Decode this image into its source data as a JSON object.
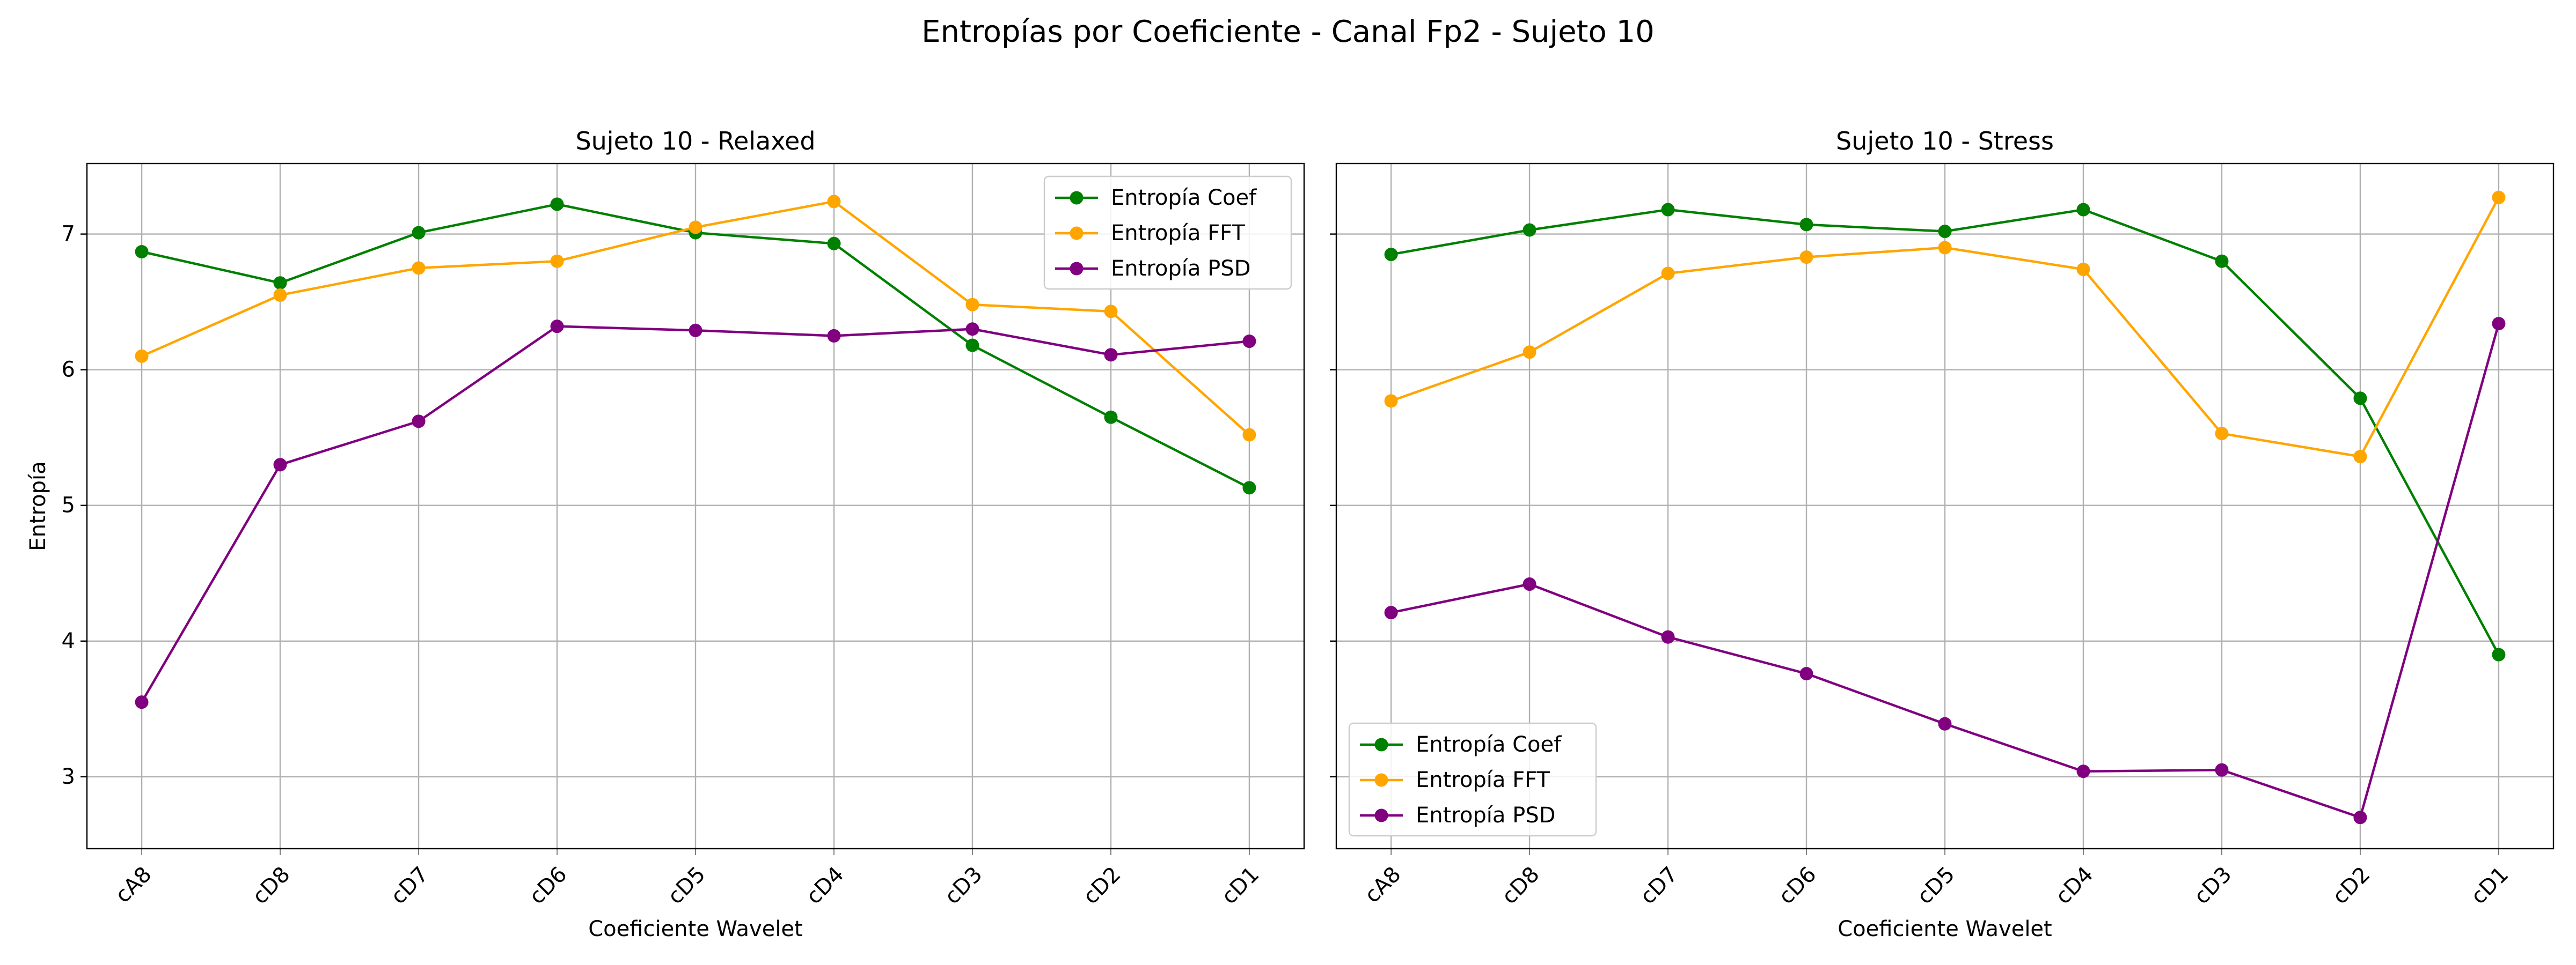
{
  "figure": {
    "suptitle": "Entropías por Coeficiente - Canal Fp2 - Sujeto 10"
  },
  "chart_data": [
    {
      "type": "line",
      "title": "Sujeto 10 - Relaxed",
      "xlabel": "Coeficiente Wavelet",
      "ylabel": "Entropía",
      "categories": [
        "cA8",
        "cD8",
        "cD7",
        "cD6",
        "cD5",
        "cD4",
        "cD3",
        "cD2",
        "cD1"
      ],
      "ylim": [
        2.47,
        7.52
      ],
      "yticks": [
        3,
        4,
        5,
        6,
        7
      ],
      "grid": true,
      "legend_position": "upper right",
      "series": [
        {
          "name": "Entropía Coef",
          "color": "#008000",
          "values": [
            6.87,
            6.64,
            7.01,
            7.22,
            7.01,
            6.93,
            6.18,
            5.65,
            5.13
          ]
        },
        {
          "name": "Entropía FFT",
          "color": "#FFA500",
          "values": [
            6.1,
            6.55,
            6.75,
            6.8,
            7.05,
            7.24,
            6.48,
            6.43,
            5.52
          ]
        },
        {
          "name": "Entropía PSD",
          "color": "#800080",
          "values": [
            3.55,
            5.3,
            5.62,
            6.32,
            6.29,
            6.25,
            6.3,
            6.11,
            6.21
          ]
        }
      ]
    },
    {
      "type": "line",
      "title": "Sujeto 10 - Stress",
      "xlabel": "Coeficiente Wavelet",
      "ylabel": "",
      "categories": [
        "cA8",
        "cD8",
        "cD7",
        "cD6",
        "cD5",
        "cD4",
        "cD3",
        "cD2",
        "cD1"
      ],
      "ylim": [
        2.47,
        7.52
      ],
      "yticks": [
        3,
        4,
        5,
        6,
        7
      ],
      "grid": true,
      "legend_position": "lower left",
      "series": [
        {
          "name": "Entropía Coef",
          "color": "#008000",
          "values": [
            6.85,
            7.03,
            7.18,
            7.07,
            7.02,
            7.18,
            6.8,
            5.79,
            3.9
          ]
        },
        {
          "name": "Entropía FFT",
          "color": "#FFA500",
          "values": [
            5.77,
            6.13,
            6.71,
            6.83,
            6.9,
            6.74,
            5.53,
            5.36,
            7.27
          ]
        },
        {
          "name": "Entropía PSD",
          "color": "#800080",
          "values": [
            4.21,
            4.42,
            4.03,
            3.76,
            3.39,
            3.04,
            3.05,
            2.7,
            6.34
          ]
        }
      ]
    }
  ]
}
